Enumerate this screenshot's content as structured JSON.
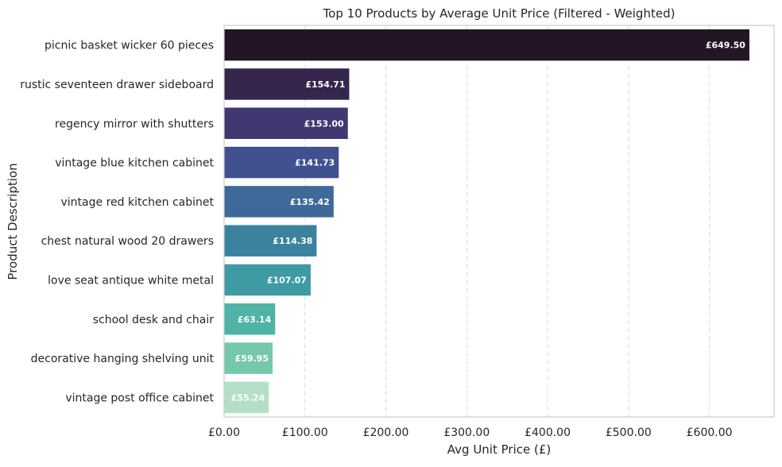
{
  "chart_data": {
    "type": "bar",
    "orientation": "horizontal",
    "title": "Top 10 Products by Average Unit Price (Filtered - Weighted)",
    "xlabel": "Avg Unit Price (£)",
    "ylabel": "Product Description",
    "xlim": [
      0,
      680
    ],
    "x_ticks": [
      0,
      100,
      200,
      300,
      400,
      500,
      600
    ],
    "x_tick_labels": [
      "£0.00",
      "£100.00",
      "£200.00",
      "£300.00",
      "£400.00",
      "£500.00",
      "£600.00"
    ],
    "grid": "x-axis dashed",
    "categories": [
      "picnic basket wicker 60 pieces",
      "rustic  seventeen drawer sideboard",
      "regency mirror with shutters",
      "vintage blue kitchen cabinet",
      "vintage red kitchen cabinet",
      "chest natural wood 20 drawers",
      "love seat antique white metal",
      "school desk and chair",
      "decorative hanging shelving unit",
      "vintage post office cabinet"
    ],
    "values": [
      649.5,
      154.71,
      153.0,
      141.73,
      135.42,
      114.38,
      107.07,
      63.14,
      59.95,
      55.24
    ],
    "value_labels": [
      "£649.50",
      "£154.71",
      "£153.00",
      "£141.73",
      "£135.42",
      "£114.38",
      "£107.07",
      "£63.14",
      "£59.95",
      "£55.24"
    ],
    "colors": [
      "#231526",
      "#35264c",
      "#403871",
      "#41508f",
      "#3e6998",
      "#3b829f",
      "#3e9ba3",
      "#4fb3a6",
      "#75c8ab",
      "#b3e0c4"
    ]
  }
}
